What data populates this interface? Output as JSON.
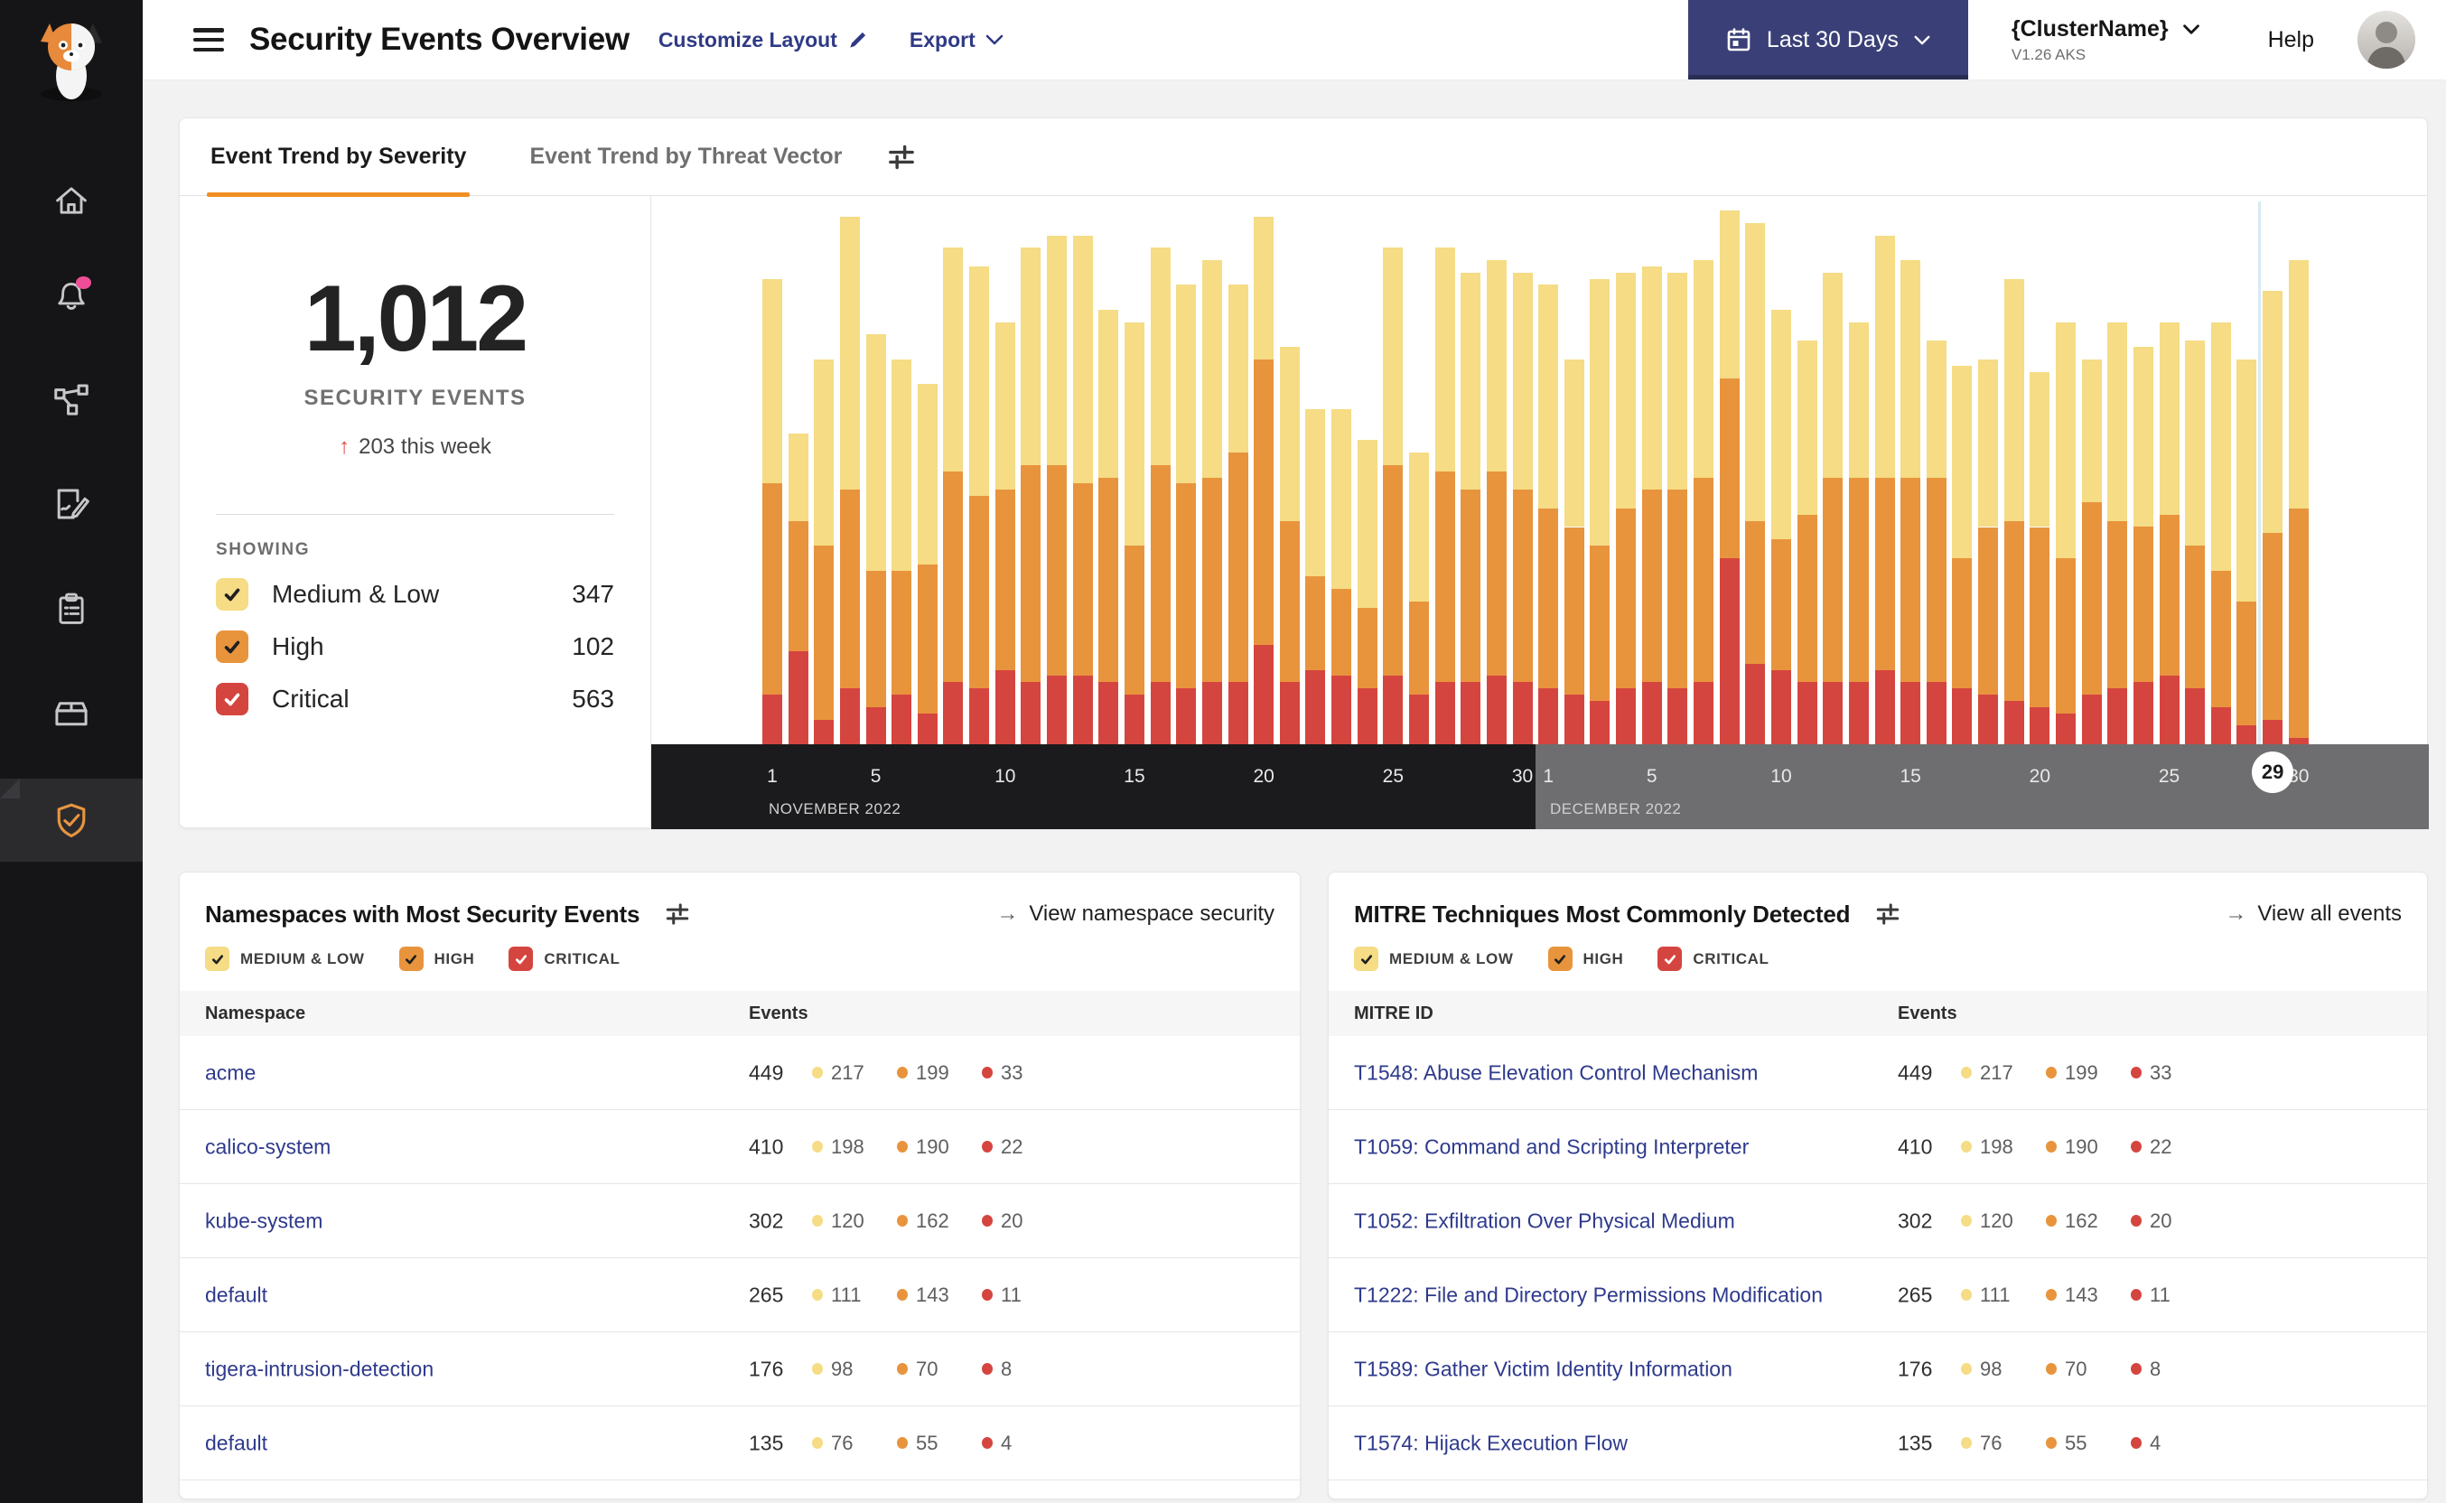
{
  "header": {
    "title": "Security Events Overview",
    "customize_label": "Customize Layout",
    "export_label": "Export",
    "date_range": "Last 30 Days",
    "cluster_name": "{ClusterName}",
    "cluster_version": "V1.26 AKS",
    "help_label": "Help"
  },
  "icons": {
    "arrow_right": "→"
  },
  "sidebar": {
    "items": [
      "home",
      "notifications",
      "service-graph",
      "policies",
      "compliance-reports",
      "workloads",
      "threat-defense"
    ]
  },
  "tabs": [
    {
      "label": "Event Trend by Severity",
      "active": true
    },
    {
      "label": "Event Trend by Threat Vector",
      "active": false
    }
  ],
  "summary": {
    "total": "1,012",
    "total_label": "SECURITY EVENTS",
    "delta_arrow": "↑",
    "delta_text": "203 this week",
    "showing_label": "SHOWING"
  },
  "severity_filters": [
    {
      "key": "medium_low",
      "label": "Medium & Low",
      "short": "MEDIUM & LOW",
      "count": 347,
      "color": "#F5DC85",
      "check": "#1F1F1F"
    },
    {
      "key": "high",
      "label": "High",
      "short": "HIGH",
      "count": 102,
      "color": "#E8943D",
      "check": "#1F1F1F"
    },
    {
      "key": "critical",
      "label": "Critical",
      "short": "CRITICAL",
      "count": 563,
      "color": "#D5453F",
      "check": "#FFFFFF"
    }
  ],
  "chart_data": {
    "type": "bar",
    "stacked": true,
    "grid": false,
    "ylabel": "",
    "xlabel": "",
    "unit": "relative event volume per day (no y-axis shown)",
    "months": [
      {
        "label": "NOVEMBER 2022",
        "days": 30,
        "ticks": [
          1,
          5,
          10,
          15,
          20,
          25,
          30
        ]
      },
      {
        "label": "DECEMBER 2022",
        "days": 30,
        "ticks": [
          1,
          5,
          10,
          15,
          20,
          25,
          30
        ]
      }
    ],
    "selected_day": {
      "month_index": 1,
      "day": 29
    },
    "series": [
      {
        "name": "Critical",
        "key": "critical",
        "color": "#D5453F",
        "values": [
          8,
          15,
          4,
          9,
          6,
          8,
          5,
          10,
          9,
          12,
          10,
          11,
          11,
          10,
          8,
          10,
          9,
          10,
          10,
          16,
          10,
          12,
          11,
          9,
          11,
          8,
          10,
          10,
          11,
          10,
          9,
          8,
          7,
          9,
          10,
          9,
          10,
          30,
          13,
          12,
          10,
          10,
          10,
          12,
          10,
          10,
          9,
          8,
          7,
          6,
          5,
          8,
          9,
          10,
          11,
          9,
          6,
          3,
          4,
          1
        ]
      },
      {
        "name": "High",
        "key": "high",
        "color": "#E8943D",
        "values": [
          34,
          21,
          28,
          32,
          22,
          20,
          24,
          34,
          31,
          29,
          35,
          34,
          31,
          33,
          24,
          35,
          33,
          33,
          37,
          46,
          26,
          15,
          14,
          13,
          34,
          15,
          34,
          31,
          33,
          31,
          29,
          27,
          25,
          29,
          31,
          32,
          33,
          29,
          23,
          21,
          27,
          33,
          33,
          31,
          33,
          33,
          21,
          27,
          29,
          29,
          25,
          31,
          27,
          25,
          26,
          23,
          22,
          20,
          30,
          37
        ]
      },
      {
        "name": "Medium & Low",
        "key": "medium_low",
        "color": "#F5DC85",
        "values": [
          33,
          14,
          30,
          44,
          38,
          34,
          29,
          36,
          37,
          27,
          35,
          37,
          40,
          27,
          36,
          35,
          32,
          35,
          27,
          23,
          28,
          27,
          29,
          27,
          35,
          24,
          36,
          35,
          34,
          35,
          36,
          27,
          43,
          38,
          36,
          35,
          35,
          27,
          48,
          37,
          28,
          33,
          25,
          39,
          35,
          22,
          31,
          27,
          39,
          25,
          38,
          23,
          32,
          29,
          31,
          33,
          40,
          39,
          39,
          40
        ]
      }
    ]
  },
  "panels": {
    "namespaces": {
      "title": "Namespaces with Most Security Events",
      "link_label": "View namespace security",
      "columns": [
        "Namespace",
        "Events"
      ],
      "rows": [
        {
          "name": "acme",
          "total": 449,
          "medium_low": 217,
          "high": 199,
          "critical": 33
        },
        {
          "name": "calico-system",
          "total": 410,
          "medium_low": 198,
          "high": 190,
          "critical": 22
        },
        {
          "name": "kube-system",
          "total": 302,
          "medium_low": 120,
          "high": 162,
          "critical": 20
        },
        {
          "name": "default",
          "total": 265,
          "medium_low": 111,
          "high": 143,
          "critical": 11
        },
        {
          "name": "tigera-intrusion-detection",
          "total": 176,
          "medium_low": 98,
          "high": 70,
          "critical": 8
        },
        {
          "name": "default",
          "total": 135,
          "medium_low": 76,
          "high": 55,
          "critical": 4
        }
      ]
    },
    "mitre": {
      "title": "MITRE Techniques Most Commonly Detected",
      "link_label": "View all events",
      "columns": [
        "MITRE ID",
        "Events"
      ],
      "rows": [
        {
          "name": "T1548: Abuse Elevation Control Mechanism",
          "total": 449,
          "medium_low": 217,
          "high": 199,
          "critical": 33
        },
        {
          "name": "T1059: Command and Scripting Interpreter",
          "total": 410,
          "medium_low": 198,
          "high": 190,
          "critical": 22
        },
        {
          "name": "T1052: Exfiltration Over Physical Medium",
          "total": 302,
          "medium_low": 120,
          "high": 162,
          "critical": 20
        },
        {
          "name": "T1222: File and Directory Permissions Modification",
          "total": 265,
          "medium_low": 111,
          "high": 143,
          "critical": 11
        },
        {
          "name": "T1589: Gather Victim Identity Information",
          "total": 176,
          "medium_low": 98,
          "high": 70,
          "critical": 8
        },
        {
          "name": "T1574: Hijack Execution Flow",
          "total": 135,
          "medium_low": 76,
          "high": 55,
          "critical": 4
        }
      ]
    }
  },
  "colors": {
    "severity_medium_low": "#F5DC85",
    "severity_high": "#E8943D",
    "severity_critical": "#D5453F",
    "accent_orange": "#F08F24",
    "button_navy": "#3A4077",
    "link_indigo": "#2E3A8C",
    "axis_november_bg": "#1B1B1D",
    "axis_december_bg": "#6E6E70",
    "selected_line": "#D8EAF4"
  }
}
